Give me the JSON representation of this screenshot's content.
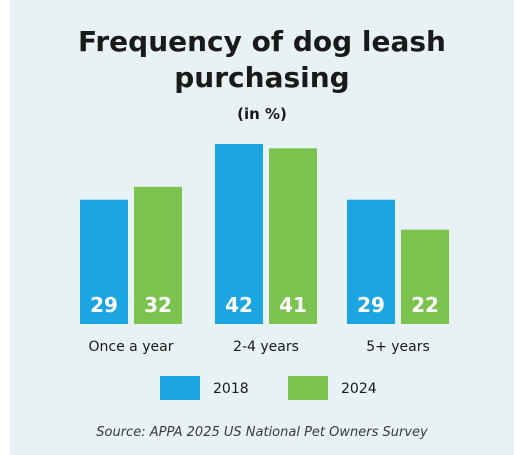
{
  "chart_data": {
    "type": "bar",
    "title": "Frequency of dog leash purchasing",
    "subtitle": "(in %)",
    "categories": [
      "Once a year",
      "2-4 years",
      "5+ years"
    ],
    "series": [
      {
        "name": "2018",
        "color": "#1ba6e1",
        "values": [
          29,
          42,
          29
        ]
      },
      {
        "name": "2024",
        "color": "#7cc24e",
        "values": [
          32,
          41,
          22
        ]
      }
    ],
    "ylim": [
      0,
      42
    ],
    "legend_position": "bottom",
    "grid": false,
    "source": "Source: APPA 2025 US National Pet Owners Survey"
  }
}
